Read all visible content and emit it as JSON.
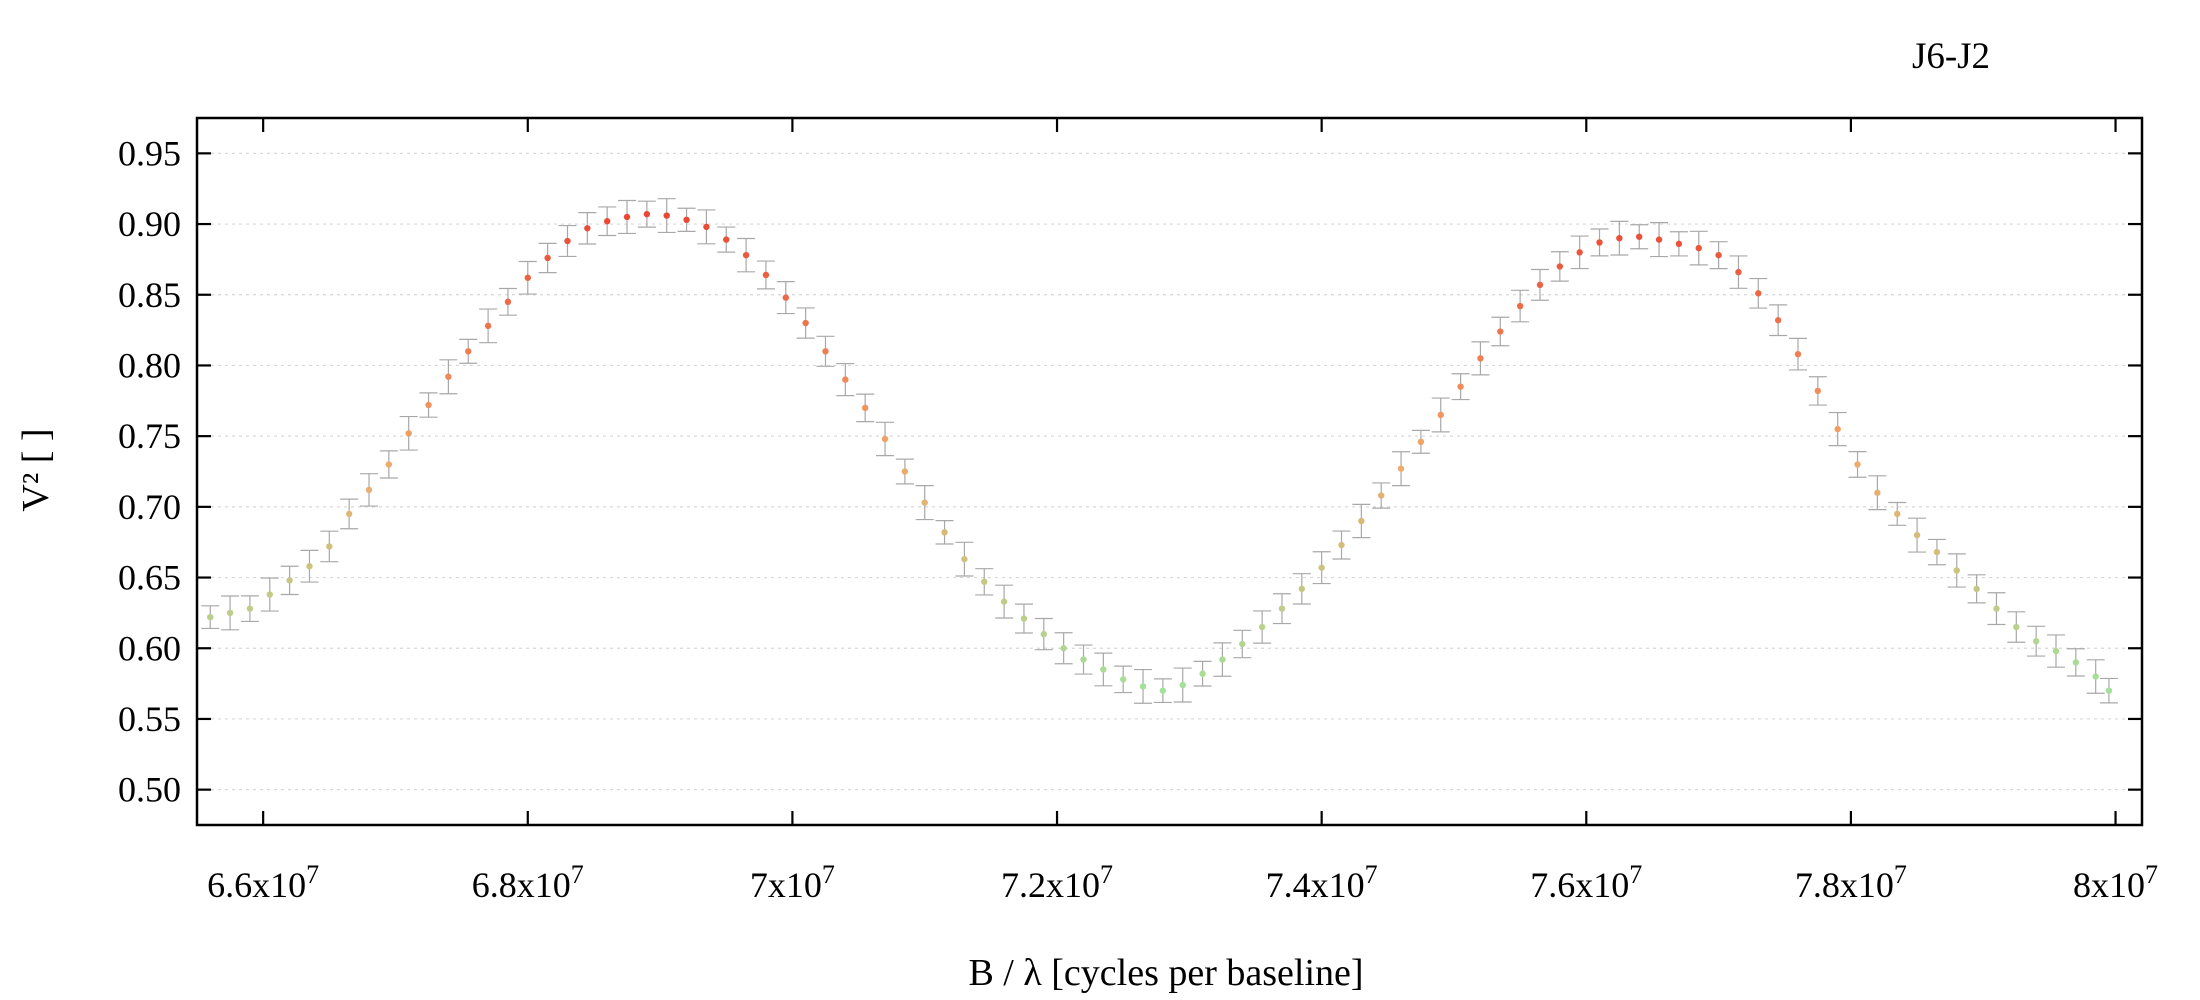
{
  "chart_data": {
    "type": "scatter",
    "title": "J6-J2",
    "xlabel": "B / λ [cycles per baseline]",
    "ylabel": "V² [ ]",
    "xlim": [
      65500000,
      80200000
    ],
    "ylim": [
      0.475,
      0.975
    ],
    "x_ticks": [
      {
        "value": 66000000,
        "mantissa": "6.6x10",
        "exp": "7"
      },
      {
        "value": 68000000,
        "mantissa": "6.8x10",
        "exp": "7"
      },
      {
        "value": 70000000,
        "mantissa": "7x10",
        "exp": "7"
      },
      {
        "value": 72000000,
        "mantissa": "7.2x10",
        "exp": "7"
      },
      {
        "value": 74000000,
        "mantissa": "7.4x10",
        "exp": "7"
      },
      {
        "value": 76000000,
        "mantissa": "7.6x10",
        "exp": "7"
      },
      {
        "value": 78000000,
        "mantissa": "7.8x10",
        "exp": "7"
      },
      {
        "value": 80000000,
        "mantissa": "8x10",
        "exp": "7"
      }
    ],
    "y_ticks": [
      "0.50",
      "0.55",
      "0.60",
      "0.65",
      "0.70",
      "0.75",
      "0.80",
      "0.85",
      "0.90",
      "0.95"
    ],
    "grid": true,
    "colormap": "value",
    "colors": {
      "low": "#98e8a0",
      "mid": "#f2a868",
      "high": "#e84030",
      "error_bar": "#a8a8a8",
      "grid": "#d8d8d8"
    },
    "series": [
      {
        "error_bars": true,
        "x": [
          65600000,
          65750000,
          65900000,
          66050000,
          66200000,
          66350000,
          66500000,
          66650000,
          66800000,
          66950000,
          67100000,
          67250000,
          67400000,
          67550000,
          67700000,
          67850000,
          68000000,
          68150000,
          68300000,
          68450000,
          68600000,
          68750000,
          68900000,
          69050000,
          69200000,
          69350000,
          69500000,
          69650000,
          69800000,
          69950000,
          70100000,
          70250000,
          70400000,
          70550000,
          70700000,
          70850000,
          71000000,
          71150000,
          71300000,
          71450000,
          71600000,
          71750000,
          71900000,
          72050000,
          72200000,
          72350000,
          72500000,
          72650000,
          72800000,
          72950000,
          73100000,
          73250000,
          73400000,
          73550000,
          73700000,
          73850000,
          74000000,
          74150000,
          74300000,
          74450000,
          74600000,
          74750000,
          74900000,
          75050000,
          75200000,
          75350000,
          75500000,
          75650000,
          75800000,
          75950000,
          76100000,
          76250000,
          76400000,
          76550000,
          76700000,
          76850000,
          77000000,
          77150000,
          77300000,
          77450000,
          77600000,
          77750000,
          77900000,
          78050000,
          78200000,
          78350000,
          78500000,
          78650000,
          78800000,
          78950000,
          79100000,
          79250000,
          79400000,
          79550000,
          79700000,
          79850000,
          79950000
        ],
        "y": [
          0.622,
          0.625,
          0.628,
          0.638,
          0.648,
          0.658,
          0.672,
          0.695,
          0.712,
          0.73,
          0.752,
          0.772,
          0.792,
          0.81,
          0.828,
          0.845,
          0.862,
          0.876,
          0.888,
          0.897,
          0.902,
          0.905,
          0.907,
          0.906,
          0.903,
          0.898,
          0.889,
          0.878,
          0.864,
          0.848,
          0.83,
          0.81,
          0.79,
          0.77,
          0.748,
          0.725,
          0.703,
          0.682,
          0.663,
          0.647,
          0.633,
          0.621,
          0.61,
          0.6,
          0.592,
          0.585,
          0.578,
          0.573,
          0.57,
          0.574,
          0.582,
          0.592,
          0.603,
          0.615,
          0.628,
          0.642,
          0.657,
          0.673,
          0.69,
          0.708,
          0.727,
          0.746,
          0.765,
          0.785,
          0.805,
          0.824,
          0.842,
          0.857,
          0.87,
          0.88,
          0.887,
          0.89,
          0.891,
          0.889,
          0.886,
          0.883,
          0.878,
          0.866,
          0.851,
          0.832,
          0.808,
          0.782,
          0.755,
          0.73,
          0.71,
          0.695,
          0.68,
          0.668,
          0.655,
          0.642,
          0.628,
          0.615,
          0.605,
          0.598,
          0.59,
          0.58,
          0.57
        ]
      }
    ]
  }
}
